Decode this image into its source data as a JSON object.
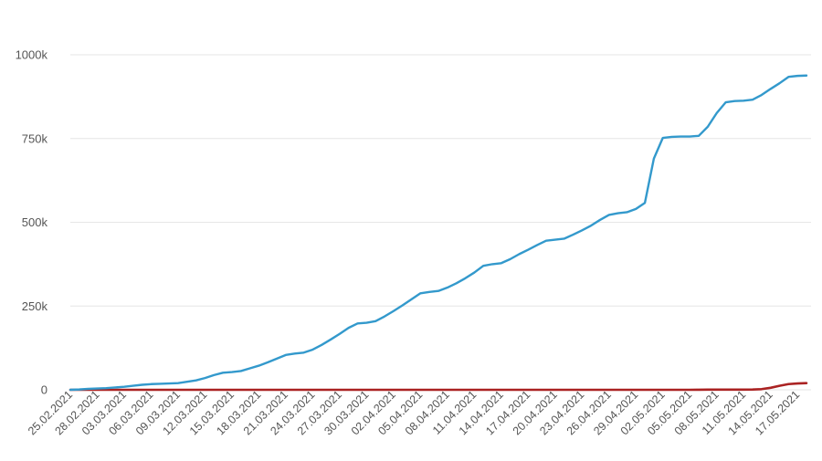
{
  "chart_data": {
    "type": "line",
    "title": "",
    "xlabel": "",
    "ylabel": "",
    "ylim": [
      0,
      1000000
    ],
    "yticks": [
      {
        "value": 0,
        "label": "0"
      },
      {
        "value": 250000,
        "label": "250k"
      },
      {
        "value": 500000,
        "label": "500k"
      },
      {
        "value": 750000,
        "label": "750k"
      },
      {
        "value": 1000000,
        "label": "1000k"
      }
    ],
    "grid": true,
    "legend": "none",
    "x": [
      "25.02.2021",
      "26.02.2021",
      "27.02.2021",
      "28.02.2021",
      "01.03.2021",
      "02.03.2021",
      "03.03.2021",
      "04.03.2021",
      "05.03.2021",
      "06.03.2021",
      "07.03.2021",
      "08.03.2021",
      "09.03.2021",
      "10.03.2021",
      "11.03.2021",
      "12.03.2021",
      "13.03.2021",
      "14.03.2021",
      "15.03.2021",
      "16.03.2021",
      "17.03.2021",
      "18.03.2021",
      "19.03.2021",
      "20.03.2021",
      "21.03.2021",
      "22.03.2021",
      "23.03.2021",
      "24.03.2021",
      "25.03.2021",
      "26.03.2021",
      "27.03.2021",
      "28.03.2021",
      "29.03.2021",
      "30.03.2021",
      "31.03.2021",
      "01.04.2021",
      "02.04.2021",
      "03.04.2021",
      "04.04.2021",
      "05.04.2021",
      "06.04.2021",
      "07.04.2021",
      "08.04.2021",
      "09.04.2021",
      "10.04.2021",
      "11.04.2021",
      "12.04.2021",
      "13.04.2021",
      "14.04.2021",
      "15.04.2021",
      "16.04.2021",
      "17.04.2021",
      "18.04.2021",
      "19.04.2021",
      "20.04.2021",
      "21.04.2021",
      "22.04.2021",
      "23.04.2021",
      "24.04.2021",
      "25.04.2021",
      "26.04.2021",
      "27.04.2021",
      "28.04.2021",
      "29.04.2021",
      "30.04.2021",
      "01.05.2021",
      "02.05.2021",
      "03.05.2021",
      "04.05.2021",
      "05.05.2021",
      "06.05.2021",
      "07.05.2021",
      "08.05.2021",
      "09.05.2021",
      "10.05.2021",
      "11.05.2021",
      "12.05.2021",
      "13.05.2021",
      "14.05.2021",
      "15.05.2021",
      "16.05.2021",
      "17.05.2021",
      "18.05.2021"
    ],
    "xtick_labels": [
      "25.02.2021",
      "28.02.2021",
      "03.03.2021",
      "06.03.2021",
      "09.03.2021",
      "12.03.2021",
      "15.03.2021",
      "18.03.2021",
      "21.03.2021",
      "24.03.2021",
      "27.03.2021",
      "30.03.2021",
      "02.04.2021",
      "05.04.2021",
      "08.04.2021",
      "11.04.2021",
      "14.04.2021",
      "17.04.2021",
      "20.04.2021",
      "23.04.2021",
      "26.04.2021",
      "29.04.2021",
      "02.05.2021",
      "05.05.2021",
      "08.05.2021",
      "11.05.2021",
      "14.05.2021",
      "17.05.2021"
    ],
    "series": [
      {
        "color": "#3399cc",
        "values": [
          0,
          1000,
          3000,
          4000,
          5000,
          7000,
          9000,
          12000,
          15000,
          17000,
          18000,
          19000,
          20000,
          24000,
          28000,
          35000,
          44000,
          51000,
          53000,
          56000,
          64000,
          72000,
          82000,
          93000,
          104000,
          108000,
          111000,
          120000,
          134000,
          150000,
          167000,
          185000,
          198000,
          200000,
          205000,
          219000,
          235000,
          252000,
          270000,
          288000,
          292000,
          295000,
          305000,
          318000,
          333000,
          350000,
          370000,
          375000,
          378000,
          390000,
          405000,
          418000,
          432000,
          445000,
          448000,
          451000,
          463000,
          476000,
          490000,
          507000,
          522000,
          527000,
          530000,
          540000,
          558000,
          690000,
          752000,
          755000,
          756000,
          756000,
          758000,
          785000,
          826000,
          858000,
          862000,
          863000,
          866000,
          880000,
          898000,
          915000,
          934000,
          937000,
          938000
        ]
      },
      {
        "color": "#aa2222",
        "values": [
          0,
          0,
          0,
          0,
          0,
          0,
          0,
          0,
          0,
          0,
          0,
          0,
          0,
          0,
          0,
          0,
          0,
          0,
          0,
          0,
          0,
          0,
          0,
          0,
          0,
          0,
          0,
          0,
          0,
          0,
          0,
          0,
          0,
          0,
          0,
          0,
          0,
          0,
          0,
          0,
          0,
          0,
          0,
          0,
          0,
          0,
          0,
          0,
          0,
          0,
          0,
          0,
          0,
          0,
          0,
          0,
          0,
          0,
          0,
          0,
          0,
          0,
          0,
          0,
          0,
          0,
          0,
          0,
          0,
          0,
          300,
          400,
          500,
          500,
          500,
          600,
          900,
          2000,
          6000,
          12000,
          17000,
          19000,
          20000
        ]
      }
    ]
  }
}
